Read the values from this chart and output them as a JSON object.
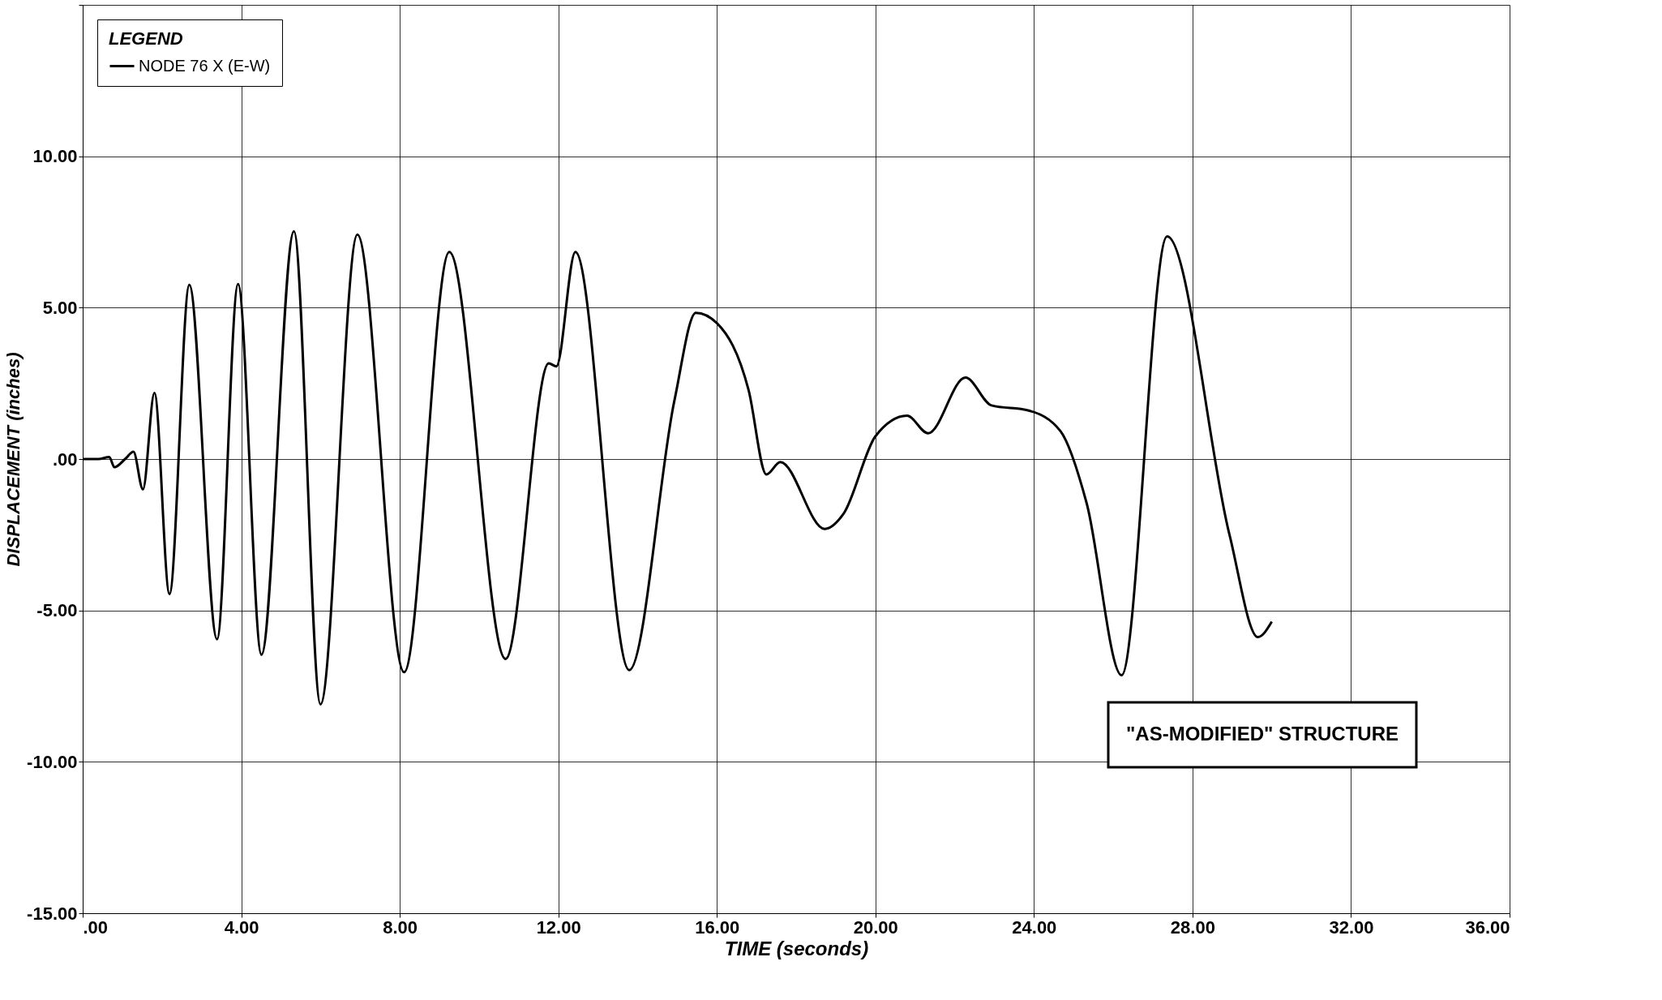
{
  "chart_data": {
    "type": "line",
    "xlabel": "TIME  (seconds)",
    "ylabel": "DISPLACEMENT (inches)",
    "legend_title": "LEGEND",
    "x": [
      0,
      0.4,
      0.67,
      0.8,
      1.07,
      1.28,
      1.52,
      1.81,
      2.19,
      2.69,
      3.39,
      3.92,
      4.51,
      5.33,
      6.0,
      6.93,
      8.11,
      9.25,
      10.67,
      11.76,
      11.95,
      12.43,
      13.79,
      14.93,
      15.47,
      16.0,
      16.8,
      17.25,
      17.6,
      18.72,
      19.2,
      20.0,
      20.8,
      21.33,
      22.27,
      22.93,
      23.87,
      24.67,
      25.33,
      26.21,
      27.36,
      28.93,
      29.65,
      30.0
    ],
    "series": [
      {
        "name": "NODE 76 X (E-W)",
        "color": "#000000",
        "values": [
          0,
          0,
          0.07,
          -0.27,
          0,
          0.24,
          -1.0,
          2.18,
          -4.46,
          5.75,
          -5.95,
          5.78,
          -6.46,
          7.52,
          -8.1,
          7.41,
          -7.04,
          6.84,
          -6.6,
          3.16,
          3.06,
          6.84,
          -6.97,
          1.94,
          4.83,
          4.49,
          2.28,
          -0.51,
          -0.1,
          -2.31,
          -1.8,
          0.75,
          1.43,
          0.85,
          2.69,
          1.77,
          1.6,
          0.92,
          -1.46,
          -7.14,
          7.35,
          -2.48,
          -5.88,
          -5.37
        ]
      }
    ],
    "xlim": [
      0,
      36
    ],
    "ylim": [
      -15,
      15
    ],
    "xticks": [
      {
        "value": 0,
        "label": ".00"
      },
      {
        "value": 4,
        "label": "4.00"
      },
      {
        "value": 8,
        "label": "8.00"
      },
      {
        "value": 12,
        "label": "12.00"
      },
      {
        "value": 16,
        "label": "16.00"
      },
      {
        "value": 20,
        "label": "20.00"
      },
      {
        "value": 24,
        "label": "24.00"
      },
      {
        "value": 28,
        "label": "28.00"
      },
      {
        "value": 32,
        "label": "32.00"
      },
      {
        "value": 36,
        "label": "36.00"
      }
    ],
    "yticks": [
      {
        "value": -15,
        "label": "-15.00"
      },
      {
        "value": -10,
        "label": "-10.00"
      },
      {
        "value": -5,
        "label": "-5.00"
      },
      {
        "value": 0,
        "label": ".00"
      },
      {
        "value": 5,
        "label": "5.00"
      },
      {
        "value": 10,
        "label": "10.00"
      },
      {
        "value": 15,
        "label": null
      }
    ],
    "grid": true,
    "legend": "top left",
    "marker": "none",
    "line_style": "solid",
    "annotations": [
      "\"AS-MODIFIED\" STRUCTURE"
    ]
  }
}
